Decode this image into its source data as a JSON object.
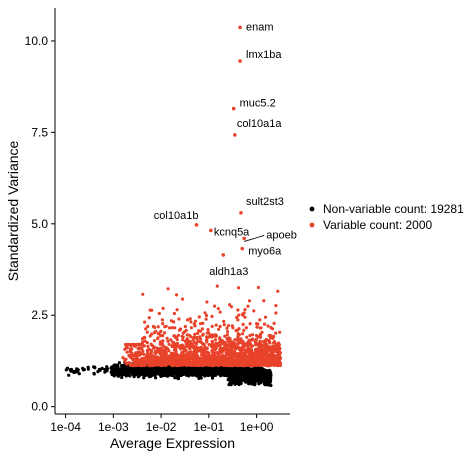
{
  "chart_data": {
    "type": "scatter",
    "xlabel": "Average Expression",
    "ylabel": "Standardized Variance",
    "x_scale": "log10",
    "xlim": [
      6e-05,
      5
    ],
    "ylim": [
      -0.2,
      10.9
    ],
    "x_ticks": [
      {
        "value": 0.0001,
        "label": "1e-04"
      },
      {
        "value": 0.001,
        "label": "1e-03"
      },
      {
        "value": 0.01,
        "label": "1e-02"
      },
      {
        "value": 0.1,
        "label": "1e-01"
      },
      {
        "value": 1,
        "label": "1e+00"
      }
    ],
    "y_ticks": [
      {
        "value": 0,
        "label": "0.0"
      },
      {
        "value": 2.5,
        "label": "2.5"
      },
      {
        "value": 5,
        "label": "5.0"
      },
      {
        "value": 7.5,
        "label": "7.5"
      },
      {
        "value": 10,
        "label": "10.0"
      }
    ],
    "grid": false,
    "legend_position": "right",
    "series": [
      {
        "name": "Non-variable count: 19281",
        "color": "#000000",
        "point_count": 19281
      },
      {
        "name": "Variable count: 2000",
        "color": "#E8432A",
        "point_count": 2000
      }
    ],
    "labeled_genes": [
      {
        "label": "enam",
        "x": 0.45,
        "y": 10.37
      },
      {
        "label": "lmx1ba",
        "x": 0.45,
        "y": 9.45
      },
      {
        "label": "muc5.2",
        "x": 0.33,
        "y": 8.15
      },
      {
        "label": "col10a1a",
        "x": 0.35,
        "y": 7.43
      },
      {
        "label": "sult2st3",
        "x": 0.47,
        "y": 5.3
      },
      {
        "label": "col10a1b",
        "x": 0.055,
        "y": 4.97
      },
      {
        "label": "kcnq5a",
        "x": 0.11,
        "y": 4.82
      },
      {
        "label": "apoeb",
        "x": 0.55,
        "y": 4.6
      },
      {
        "label": "myo6a",
        "x": 0.5,
        "y": 4.32
      },
      {
        "label": "aldh1a3",
        "x": 0.2,
        "y": 4.15
      }
    ]
  }
}
